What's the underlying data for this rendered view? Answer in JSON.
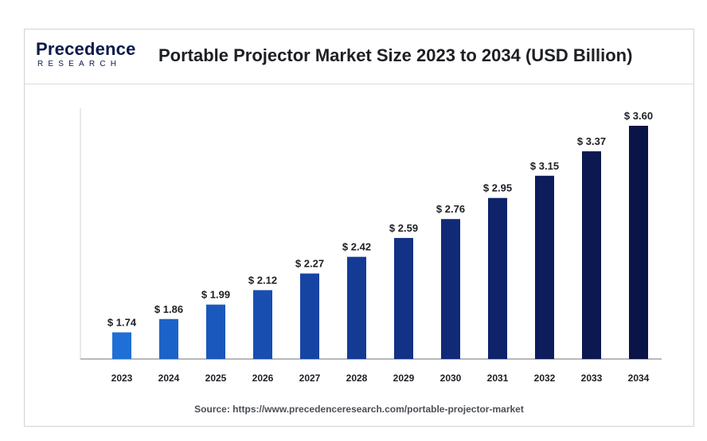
{
  "logo": {
    "line1": "Precedence",
    "line2": "RESEARCH"
  },
  "title": "Portable Projector Market Size 2023 to 2034 (USD Billion)",
  "source": "Source: https://www.precedenceresearch.com/portable-projector-market",
  "chart_data": {
    "type": "bar",
    "title": "Portable Projector Market Size 2023 to 2034 (USD Billion)",
    "categories": [
      "2023",
      "2024",
      "2025",
      "2026",
      "2027",
      "2028",
      "2029",
      "2030",
      "2031",
      "2032",
      "2033",
      "2034"
    ],
    "values": [
      1.74,
      1.86,
      1.99,
      2.12,
      2.27,
      2.42,
      2.59,
      2.76,
      2.95,
      3.15,
      3.37,
      3.6
    ],
    "labels": [
      "$ 1.74",
      "$ 1.86",
      "$ 1.99",
      "$ 2.12",
      "$ 2.27",
      "$ 2.42",
      "$ 2.59",
      "$ 2.76",
      "$ 2.95",
      "$ 3.15",
      "$ 3.37",
      "$ 3.60"
    ],
    "xlabel": "",
    "ylabel": "",
    "ylim": [
      1.5,
      3.6
    ],
    "grid": false,
    "legend": "none",
    "colors": [
      "#1f6fd6",
      "#1c63c9",
      "#1a58bd",
      "#184eb0",
      "#1644a2",
      "#143b94",
      "#123286",
      "#102a78",
      "#0e2369",
      "#0d1d5c",
      "#0c1850",
      "#0b1446"
    ]
  }
}
